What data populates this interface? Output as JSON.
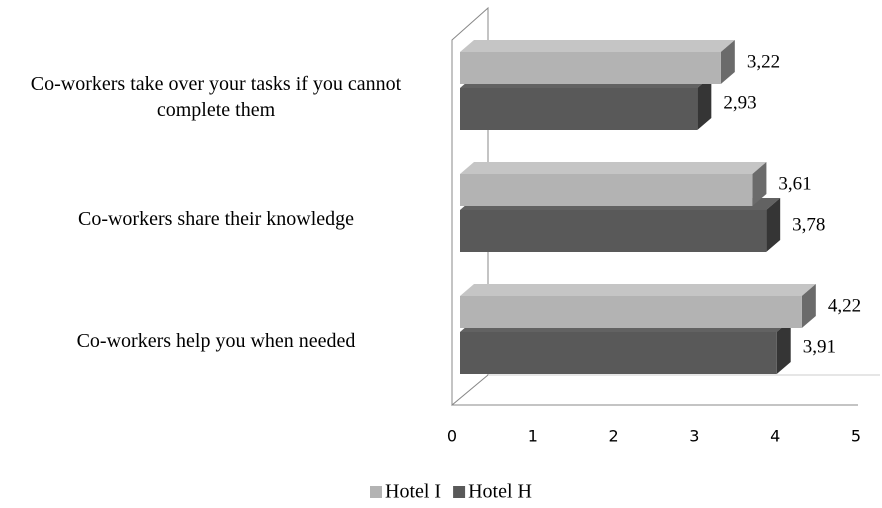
{
  "chart_data": {
    "type": "bar",
    "orientation": "horizontal",
    "categories": [
      "Co-workers take over your tasks if you cannot complete them",
      "Co-workers share their knowledge",
      "Co-workers help you when needed"
    ],
    "series": [
      {
        "name": "Hotel I",
        "color": "#b3b3b3",
        "values": [
          3.22,
          3.61,
          4.22
        ],
        "value_labels": [
          "3,22",
          "3,61",
          "4,22"
        ]
      },
      {
        "name": "Hotel H",
        "color": "#595959",
        "values": [
          2.93,
          3.78,
          3.91
        ],
        "value_labels": [
          "2,93",
          "3,78",
          "3,91"
        ]
      }
    ],
    "xlim": [
      0,
      5
    ],
    "xticks": [
      0,
      1,
      2,
      3,
      4,
      5
    ]
  }
}
